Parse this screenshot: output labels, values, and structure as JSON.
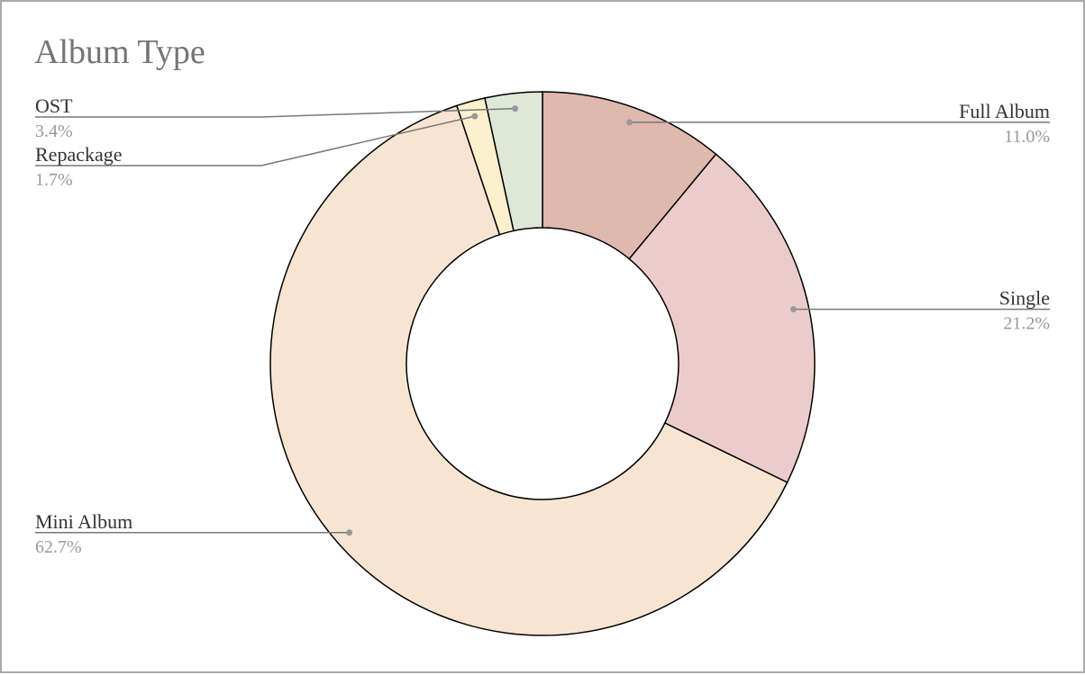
{
  "chart_data": {
    "type": "donut",
    "title": "Album Type",
    "categories": [
      "Full Album",
      "Single",
      "Mini Album",
      "Repackage",
      "OST"
    ],
    "values": [
      11.0,
      21.2,
      62.7,
      1.7,
      3.4
    ],
    "value_labels": [
      "11.0%",
      "21.2%",
      "62.7%",
      "1.7%",
      "3.4%"
    ],
    "colors": [
      "#dfb8ae",
      "#ecccca",
      "#f7e5d2",
      "#fdf0cc",
      "#dde8d6"
    ]
  }
}
